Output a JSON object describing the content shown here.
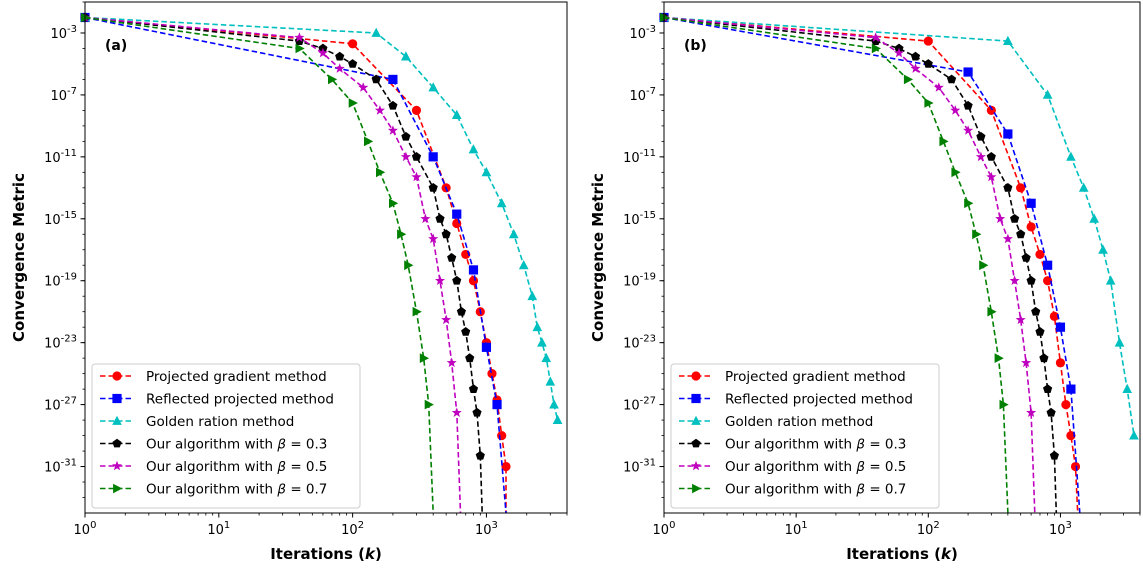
{
  "chart_data": [
    {
      "type": "line",
      "panel_label": "(a)",
      "xlabel": "Iterations (k)",
      "ylabel": "Convergence Metric",
      "x_scale": "log",
      "y_scale": "log",
      "xlim": [
        1,
        4000
      ],
      "ylim": [
        1e-34,
        0.1
      ],
      "x_ticks": [
        1,
        10,
        100,
        1000
      ],
      "y_ticks": [
        0.001,
        1e-07,
        1e-11,
        1e-15,
        1e-19,
        1e-23,
        1e-27,
        1e-31
      ],
      "legend_position": "lower-left",
      "series": [
        {
          "name": "Projected gradient method",
          "color": "#ff0000",
          "marker": "circle",
          "x": [
            1,
            100,
            300,
            500,
            600,
            700,
            800,
            900,
            1000,
            1100,
            1200,
            1300,
            1400,
            1400
          ],
          "y": [
            0.01,
            0.0002,
            1e-08,
            1e-13,
            5e-16,
            5e-18,
            1e-19,
            1e-21,
            1e-23,
            1e-25,
            2e-27,
            1e-29,
            1e-31,
            1e-34
          ]
        },
        {
          "name": "Reflected projected method",
          "color": "#0000ff",
          "marker": "square",
          "x": [
            1,
            200,
            400,
            600,
            800,
            1000,
            1200,
            1400
          ],
          "y": [
            0.01,
            1e-06,
            1e-11,
            2e-15,
            5e-19,
            5e-24,
            1e-27,
            1e-34
          ]
        },
        {
          "name": "Golden ration method",
          "color": "#00bfbf",
          "marker": "triangle-up",
          "x": [
            1,
            150,
            250,
            400,
            600,
            800,
            1000,
            1300,
            1600,
            1900,
            2200,
            2400,
            2600,
            2800,
            3000,
            3200,
            3400
          ],
          "y": [
            0.01,
            0.001,
            3e-05,
            3e-07,
            5e-09,
            3e-11,
            1e-12,
            1e-14,
            1e-16,
            1e-18,
            1e-20,
            1e-22,
            1e-23,
            1e-24,
            3e-26,
            1e-27,
            1e-28
          ]
        },
        {
          "name": "Our algorithm with β = 0.3",
          "color": "#000000",
          "marker": "pentagon",
          "x": [
            1,
            40,
            60,
            80,
            100,
            150,
            200,
            250,
            300,
            400,
            450,
            500,
            550,
            600,
            650,
            700,
            750,
            800,
            850,
            900,
            930
          ],
          "y": [
            0.01,
            0.0003,
            0.0001,
            3e-05,
            1e-05,
            1e-06,
            2e-08,
            2e-10,
            1e-11,
            1e-13,
            1e-15,
            1e-16,
            3e-18,
            1e-19,
            1e-21,
            5e-23,
            1e-24,
            1e-26,
            3e-28,
            5e-31,
            1e-34
          ]
        },
        {
          "name": "Our algorithm with β = 0.5",
          "color": "#bf00bf",
          "marker": "star",
          "x": [
            1,
            40,
            60,
            80,
            120,
            160,
            200,
            250,
            300,
            350,
            400,
            450,
            500,
            550,
            600,
            640
          ],
          "y": [
            0.01,
            0.0005,
            5e-05,
            5e-06,
            3e-07,
            1e-08,
            5e-10,
            1e-11,
            5e-13,
            1e-15,
            5e-17,
            1e-19,
            3e-22,
            5e-25,
            3e-28,
            1e-34
          ]
        },
        {
          "name": "Our algorithm with β = 0.7",
          "color": "#008000",
          "marker": "triangle-right",
          "x": [
            1,
            40,
            70,
            100,
            130,
            160,
            200,
            230,
            260,
            300,
            340,
            370,
            400
          ],
          "y": [
            0.01,
            0.0001,
            1e-06,
            3e-08,
            1e-10,
            1e-12,
            1e-14,
            1e-16,
            1e-18,
            1e-21,
            1e-24,
            1e-27,
            1e-34
          ]
        }
      ]
    },
    {
      "type": "line",
      "panel_label": "(b)",
      "xlabel": "Iterations (k)",
      "ylabel": "Convergence Metric",
      "x_scale": "log",
      "y_scale": "log",
      "xlim": [
        1,
        4000
      ],
      "ylim": [
        1e-34,
        0.1
      ],
      "x_ticks": [
        1,
        10,
        100,
        1000
      ],
      "y_ticks": [
        0.001,
        1e-07,
        1e-11,
        1e-15,
        1e-19,
        1e-23,
        1e-27,
        1e-31
      ],
      "legend_position": "lower-left",
      "series": [
        {
          "name": "Projected gradient method",
          "color": "#ff0000",
          "marker": "circle",
          "x": [
            1,
            100,
            300,
            500,
            600,
            700,
            800,
            900,
            1000,
            1100,
            1200,
            1300,
            1350
          ],
          "y": [
            0.01,
            0.0003,
            1e-08,
            1e-13,
            3e-16,
            5e-18,
            1e-19,
            5e-22,
            5e-25,
            1e-27,
            1e-29,
            1e-31,
            1e-34
          ]
        },
        {
          "name": "Reflected projected method",
          "color": "#0000ff",
          "marker": "square",
          "x": [
            1,
            200,
            400,
            600,
            800,
            1000,
            1200,
            1400
          ],
          "y": [
            0.01,
            3e-06,
            3e-10,
            1e-14,
            1e-18,
            1e-22,
            1e-26,
            1e-34
          ]
        },
        {
          "name": "Golden ration method",
          "color": "#00bfbf",
          "marker": "triangle-up",
          "x": [
            1,
            400,
            800,
            1200,
            1500,
            1800,
            2100,
            2400,
            2800,
            3200,
            3600
          ],
          "y": [
            0.01,
            0.0003,
            1e-07,
            1e-11,
            1e-13,
            1e-15,
            1e-17,
            1e-19,
            1e-23,
            1e-26,
            1e-29
          ]
        },
        {
          "name": "Our algorithm with β = 0.3",
          "color": "#000000",
          "marker": "pentagon",
          "x": [
            1,
            40,
            60,
            80,
            100,
            150,
            200,
            250,
            300,
            400,
            450,
            500,
            550,
            600,
            650,
            700,
            750,
            800,
            850,
            900,
            930
          ],
          "y": [
            0.01,
            0.0003,
            0.0001,
            3e-05,
            1e-05,
            1e-06,
            2e-08,
            2e-10,
            1e-11,
            1e-13,
            1e-15,
            1e-16,
            3e-18,
            1e-19,
            1e-21,
            5e-23,
            1e-24,
            1e-26,
            3e-28,
            5e-31,
            1e-34
          ]
        },
        {
          "name": "Our algorithm with β = 0.5",
          "color": "#bf00bf",
          "marker": "star",
          "x": [
            1,
            40,
            60,
            80,
            120,
            160,
            200,
            250,
            300,
            350,
            400,
            450,
            500,
            550,
            600,
            640
          ],
          "y": [
            0.01,
            0.0005,
            5e-05,
            5e-06,
            3e-07,
            1e-08,
            5e-10,
            1e-11,
            5e-13,
            1e-15,
            5e-17,
            1e-19,
            3e-22,
            5e-25,
            3e-28,
            1e-34
          ]
        },
        {
          "name": "Our algorithm with β = 0.7",
          "color": "#008000",
          "marker": "triangle-right",
          "x": [
            1,
            40,
            70,
            100,
            130,
            160,
            200,
            230,
            260,
            300,
            340,
            370,
            400
          ],
          "y": [
            0.01,
            0.0001,
            1e-06,
            3e-08,
            1e-10,
            1e-12,
            1e-14,
            1e-16,
            1e-18,
            1e-21,
            1e-24,
            1e-27,
            1e-34
          ]
        }
      ]
    }
  ]
}
